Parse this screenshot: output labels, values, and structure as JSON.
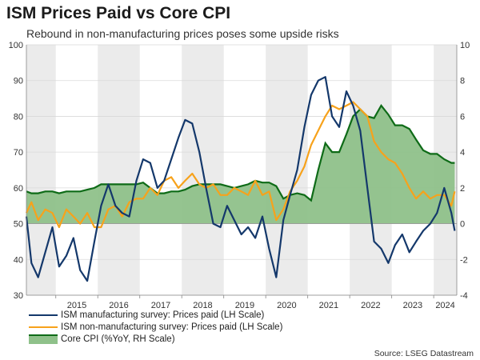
{
  "title": "ISM Prices Paid vs Core CPI",
  "subtitle": "Rebound in non-manufacturing prices poses some upside risks",
  "source": "Source: LSEG Datastream",
  "colors": {
    "manufacturing": "#14386b",
    "non_manufacturing": "#f7a21b",
    "core_cpi_line": "#0e6b17",
    "core_cpi_fill": "#8fc18a",
    "year_band": "#ebebeb"
  },
  "chart_data": {
    "type": "line",
    "x_axis": {
      "ticks": [
        "2015",
        "2016",
        "2017",
        "2018",
        "2019",
        "2020",
        "2021",
        "2022",
        "2023",
        "2024"
      ],
      "range": [
        2014.3,
        2024.55
      ]
    },
    "y_left": {
      "range": [
        30,
        100
      ],
      "ticks": [
        "30",
        "40",
        "50",
        "60",
        "70",
        "80",
        "90",
        "100"
      ]
    },
    "y_right": {
      "range": [
        -4,
        10
      ],
      "ticks": [
        "-4",
        "-2",
        "0",
        "2",
        "4",
        "6",
        "8",
        "10"
      ]
    },
    "grid": true,
    "legend_position": "bottom-left",
    "series": [
      {
        "name": "ISM manufacturing survey: Prices paid (LH Scale)",
        "axis": "left",
        "style": "line",
        "x": [
          2014.3,
          2014.42,
          2014.58,
          2014.75,
          2014.92,
          2015.08,
          2015.25,
          2015.42,
          2015.58,
          2015.75,
          2015.92,
          2016.08,
          2016.25,
          2016.42,
          2016.58,
          2016.75,
          2016.92,
          2017.08,
          2017.25,
          2017.42,
          2017.58,
          2017.75,
          2017.92,
          2018.08,
          2018.25,
          2018.42,
          2018.58,
          2018.75,
          2018.92,
          2019.08,
          2019.25,
          2019.42,
          2019.58,
          2019.75,
          2019.92,
          2020.08,
          2020.25,
          2020.42,
          2020.58,
          2020.75,
          2020.92,
          2021.08,
          2021.25,
          2021.42,
          2021.58,
          2021.75,
          2021.92,
          2022.08,
          2022.25,
          2022.42,
          2022.58,
          2022.75,
          2022.92,
          2023.08,
          2023.25,
          2023.42,
          2023.58,
          2023.75,
          2023.92,
          2024.08,
          2024.25,
          2024.42,
          2024.5
        ],
        "values": [
          52,
          39,
          35,
          42,
          49,
          38,
          41,
          46,
          37,
          34,
          45,
          55,
          61,
          55,
          53,
          52,
          62,
          68,
          67,
          60,
          62,
          68,
          74,
          79,
          78,
          70,
          60,
          50,
          49,
          55,
          51,
          47,
          49,
          46,
          52,
          43,
          35,
          51,
          58,
          65,
          77,
          86,
          90,
          91,
          80,
          77,
          87,
          83,
          76,
          60,
          45,
          43,
          39,
          44,
          47,
          42,
          45,
          48,
          50,
          53,
          60,
          53,
          48
        ]
      },
      {
        "name": "ISM non-manufacturing survey: Prices paid (LH Scale)",
        "axis": "left",
        "style": "line",
        "x": [
          2014.3,
          2014.42,
          2014.58,
          2014.75,
          2014.92,
          2015.08,
          2015.25,
          2015.42,
          2015.58,
          2015.75,
          2015.92,
          2016.08,
          2016.25,
          2016.42,
          2016.58,
          2016.75,
          2016.92,
          2017.08,
          2017.25,
          2017.42,
          2017.58,
          2017.75,
          2017.92,
          2018.08,
          2018.25,
          2018.42,
          2018.58,
          2018.75,
          2018.92,
          2019.08,
          2019.25,
          2019.42,
          2019.58,
          2019.75,
          2019.92,
          2020.08,
          2020.25,
          2020.42,
          2020.58,
          2020.75,
          2020.92,
          2021.08,
          2021.25,
          2021.42,
          2021.58,
          2021.75,
          2021.92,
          2022.08,
          2022.25,
          2022.42,
          2022.58,
          2022.75,
          2022.92,
          2023.08,
          2023.25,
          2023.42,
          2023.58,
          2023.75,
          2023.92,
          2024.08,
          2024.25,
          2024.42,
          2024.5
        ],
        "values": [
          53,
          56,
          51,
          54,
          53,
          49,
          54,
          52,
          50,
          53,
          49,
          49,
          54,
          55,
          52,
          56,
          57,
          57,
          60,
          58,
          62,
          63,
          60,
          62,
          64,
          61,
          60,
          61,
          58,
          58,
          60,
          59,
          58,
          62,
          58,
          59,
          51,
          54,
          59,
          62,
          66,
          72,
          76,
          80,
          83,
          82,
          83,
          84,
          82,
          80,
          73,
          70,
          68,
          67,
          64,
          60,
          57,
          59,
          57,
          58,
          58,
          55,
          59
        ]
      },
      {
        "name": "Core CPI (%YoY, RH Scale)",
        "axis": "right",
        "style": "area",
        "x": [
          2014.3,
          2014.42,
          2014.58,
          2014.75,
          2014.92,
          2015.08,
          2015.25,
          2015.42,
          2015.58,
          2015.75,
          2015.92,
          2016.08,
          2016.25,
          2016.42,
          2016.58,
          2016.75,
          2016.92,
          2017.08,
          2017.25,
          2017.42,
          2017.58,
          2017.75,
          2017.92,
          2018.08,
          2018.25,
          2018.42,
          2018.58,
          2018.75,
          2018.92,
          2019.08,
          2019.25,
          2019.42,
          2019.58,
          2019.75,
          2019.92,
          2020.08,
          2020.25,
          2020.42,
          2020.58,
          2020.75,
          2020.92,
          2021.08,
          2021.25,
          2021.42,
          2021.58,
          2021.75,
          2021.92,
          2022.08,
          2022.25,
          2022.42,
          2022.58,
          2022.75,
          2022.92,
          2023.08,
          2023.25,
          2023.42,
          2023.58,
          2023.75,
          2023.92,
          2024.08,
          2024.25,
          2024.42,
          2024.5
        ],
        "values": [
          1.8,
          1.7,
          1.7,
          1.8,
          1.8,
          1.7,
          1.8,
          1.8,
          1.8,
          1.9,
          2.0,
          2.2,
          2.2,
          2.2,
          2.2,
          2.2,
          2.2,
          2.3,
          2.0,
          1.7,
          1.7,
          1.8,
          1.8,
          1.9,
          2.1,
          2.2,
          2.2,
          2.2,
          2.2,
          2.1,
          2.0,
          2.1,
          2.2,
          2.4,
          2.3,
          2.3,
          2.1,
          1.4,
          1.6,
          1.7,
          1.6,
          1.3,
          3.0,
          4.5,
          4.0,
          4.0,
          5.0,
          6.0,
          6.4,
          6.0,
          5.9,
          6.6,
          6.1,
          5.5,
          5.5,
          5.3,
          4.7,
          4.1,
          3.9,
          3.9,
          3.6,
          3.4,
          3.4
        ]
      }
    ]
  },
  "legend": [
    {
      "label": "ISM manufacturing survey: Prices paid (LH Scale)"
    },
    {
      "label": "ISM non-manufacturing survey: Prices paid (LH Scale)"
    },
    {
      "label": "Core CPI (%YoY, RH Scale)"
    }
  ]
}
